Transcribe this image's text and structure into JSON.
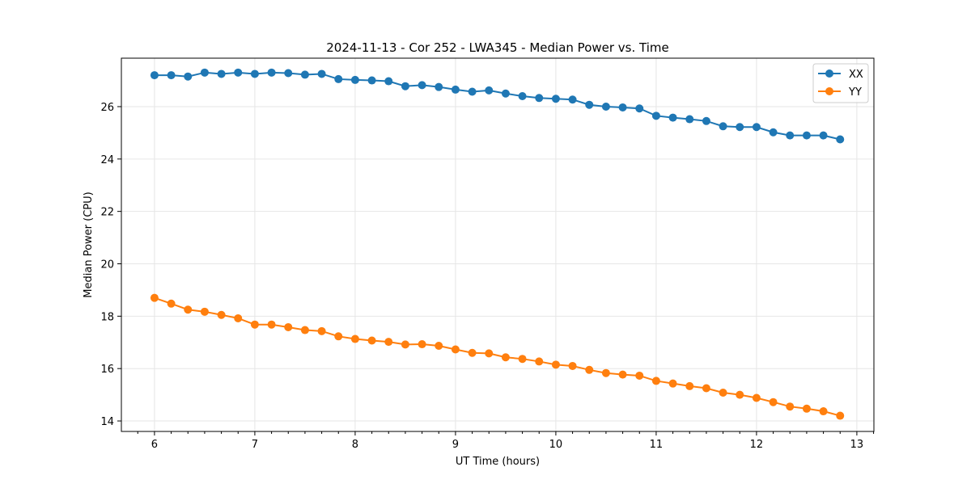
{
  "chart_data": {
    "type": "line",
    "title": "2024-11-13 - Cor 252 - LWA345 - Median Power vs. Time",
    "xlabel": "UT Time (hours)",
    "ylabel": "Median Power (CPU)",
    "xlim": [
      5.67,
      13.17
    ],
    "ylim": [
      13.6,
      27.85
    ],
    "xticks": [
      6,
      7,
      8,
      9,
      10,
      11,
      12,
      13
    ],
    "xtick_labels": [
      "6",
      "7",
      "8",
      "9",
      "10",
      "11",
      "12",
      "13"
    ],
    "yticks": [
      14,
      16,
      18,
      20,
      22,
      24,
      26
    ],
    "ytick_labels": [
      "14",
      "16",
      "18",
      "20",
      "22",
      "24",
      "26"
    ],
    "grid": true,
    "legend_position": "top-right",
    "x": [
      6.0,
      6.1667,
      6.3333,
      6.5,
      6.6667,
      6.8333,
      7.0,
      7.1667,
      7.3333,
      7.5,
      7.6667,
      7.8333,
      8.0,
      8.1667,
      8.3333,
      8.5,
      8.6667,
      8.8333,
      9.0,
      9.1667,
      9.3333,
      9.5,
      9.6667,
      9.8333,
      10.0,
      10.1667,
      10.3333,
      10.5,
      10.6667,
      10.8333,
      11.0,
      11.1667,
      11.3333,
      11.5,
      11.6667,
      11.8333,
      12.0,
      12.1667,
      12.3333,
      12.5,
      12.6667,
      12.8333
    ],
    "series": [
      {
        "name": "XX",
        "color": "#1f77b4",
        "values": [
          27.2,
          27.2,
          27.15,
          27.3,
          27.25,
          27.3,
          27.25,
          27.3,
          27.28,
          27.22,
          27.25,
          27.05,
          27.02,
          27.0,
          26.97,
          26.78,
          26.82,
          26.75,
          26.65,
          26.57,
          26.62,
          26.5,
          26.4,
          26.33,
          26.3,
          26.27,
          26.07,
          26.0,
          25.97,
          25.93,
          25.65,
          25.58,
          25.52,
          25.45,
          25.25,
          25.22,
          25.22,
          25.02,
          24.9,
          24.9,
          24.9,
          24.75
        ]
      },
      {
        "name": "YY",
        "color": "#ff7f0e",
        "values": [
          18.7,
          18.48,
          18.25,
          18.17,
          18.05,
          17.92,
          17.68,
          17.68,
          17.58,
          17.47,
          17.43,
          17.23,
          17.13,
          17.07,
          17.02,
          16.92,
          16.93,
          16.87,
          16.73,
          16.6,
          16.58,
          16.43,
          16.37,
          16.27,
          16.15,
          16.1,
          15.95,
          15.83,
          15.77,
          15.73,
          15.53,
          15.43,
          15.33,
          15.25,
          15.08,
          15.0,
          14.88,
          14.72,
          14.55,
          14.47,
          14.37,
          14.2
        ]
      }
    ]
  }
}
